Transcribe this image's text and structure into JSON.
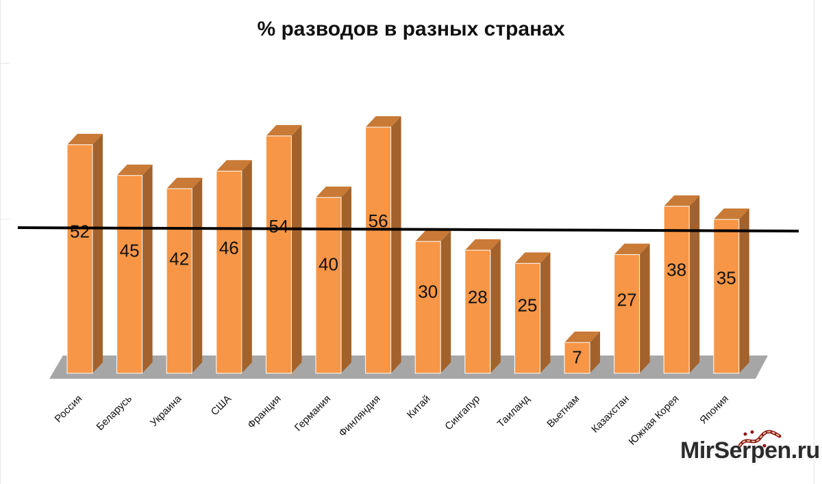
{
  "chart_data": {
    "type": "bar",
    "title": "% разводов в разных странах",
    "xlabel": "",
    "ylabel": "",
    "categories": [
      "Россия",
      "Беларусь",
      "Украина",
      "США",
      "Франция",
      "Германия",
      "Финляндия",
      "Китай",
      "Сингапур",
      "Таиланд",
      "Вьетнам",
      "Казахстан",
      "Южная Корея",
      "Япония"
    ],
    "values": [
      52,
      45,
      42,
      46,
      54,
      40,
      56,
      30,
      28,
      25,
      7,
      27,
      38,
      35
    ],
    "ylim": [
      0,
      60
    ],
    "reference_line": true,
    "grid": false,
    "legend": "none",
    "colors": {
      "bar_front": "#f79646",
      "bar_side": "#a3622b",
      "bar_top": "#c97a36",
      "floor": "#a6a6a6",
      "reference_line": "#000000"
    }
  },
  "watermark": "MirSerpen.ru"
}
